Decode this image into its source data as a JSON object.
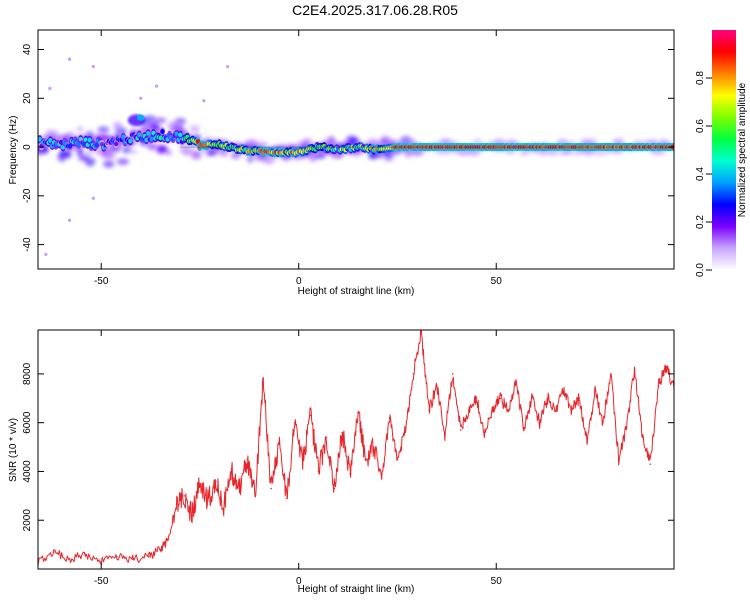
{
  "title": "C2E4.2025.317.06.28.R05",
  "colorbar": {
    "label": "Normalized spectral amplitude",
    "ticks": [
      {
        "value": 0.0,
        "label": "0.0"
      },
      {
        "value": 0.2,
        "label": "0.2"
      },
      {
        "value": 0.4,
        "label": "0.4"
      },
      {
        "value": 0.6,
        "label": "0.6"
      },
      {
        "value": 0.8,
        "label": "0.8"
      }
    ],
    "gradient": [
      "#ffffff",
      "#c9a6ff",
      "#7a00ff",
      "#0000ff",
      "#00a0ff",
      "#00ffd0",
      "#00ff40",
      "#80ff00",
      "#ffff00",
      "#ff8000",
      "#ff0000",
      "#ff0080"
    ]
  },
  "chart_data": [
    {
      "type": "heatmap",
      "name": "spectrogram",
      "xlabel": "Height of straight line (km)",
      "ylabel": "Frequency (Hz)",
      "xlim": [
        -66,
        95
      ],
      "ylim": [
        -50,
        48
      ],
      "xticks": [
        {
          "value": -50,
          "label": "-50"
        },
        {
          "value": 0,
          "label": "0"
        },
        {
          "value": 50,
          "label": "50"
        }
      ],
      "yticks": [
        {
          "value": -40,
          "label": "-40"
        },
        {
          "value": -20,
          "label": "-20"
        },
        {
          "value": 0,
          "label": "0"
        },
        {
          "value": 20,
          "label": "20"
        },
        {
          "value": 40,
          "label": "40"
        }
      ],
      "ridge": {
        "x": [
          -66,
          -60,
          -55,
          -50,
          -45,
          -40,
          -35,
          -30,
          -25,
          -20,
          -15,
          -10,
          -5,
          0,
          5,
          10,
          15,
          20,
          25,
          30,
          40,
          50,
          60,
          70,
          80,
          90,
          95
        ],
        "freq": [
          2,
          1,
          2,
          1,
          3,
          4,
          5,
          4,
          1,
          1,
          -1,
          -2,
          -2,
          -2,
          0,
          -1,
          0,
          -1,
          0,
          0,
          0,
          0,
          0,
          0,
          0,
          0,
          0
        ],
        "amplitude": [
          0.3,
          0.35,
          0.35,
          0.3,
          0.3,
          0.35,
          0.4,
          0.3,
          0.85,
          0.7,
          0.6,
          0.75,
          0.8,
          0.7,
          0.5,
          0.55,
          0.6,
          0.65,
          0.95,
          0.95,
          0.95,
          0.95,
          0.95,
          0.95,
          0.9,
          0.95,
          0.95
        ]
      }
    },
    {
      "type": "line",
      "name": "snr",
      "xlabel": "Height of straight line (km)",
      "ylabel": "SNR (10 * v/v)",
      "xlim": [
        -66,
        95
      ],
      "ylim": [
        0,
        9800
      ],
      "color": "#e8252a",
      "xticks": [
        {
          "value": -50,
          "label": "-50"
        },
        {
          "value": 0,
          "label": "0"
        },
        {
          "value": 50,
          "label": "50"
        }
      ],
      "yticks": [
        {
          "value": 2000,
          "label": "2000"
        },
        {
          "value": 4000,
          "label": "4000"
        },
        {
          "value": 6000,
          "label": "6000"
        },
        {
          "value": 8000,
          "label": "8000"
        }
      ],
      "x": [
        -66,
        -62,
        -58,
        -54,
        -50,
        -46,
        -42,
        -38,
        -35,
        -33,
        -31,
        -29,
        -27,
        -25,
        -23,
        -21,
        -19,
        -17,
        -15,
        -13,
        -11,
        -9,
        -7,
        -5,
        -3,
        -1,
        1,
        3,
        5,
        7,
        9,
        11,
        13,
        15,
        17,
        19,
        21,
        23,
        25,
        27,
        29,
        31,
        33,
        35,
        37,
        39,
        41,
        43,
        45,
        47,
        49,
        51,
        53,
        55,
        57,
        59,
        61,
        63,
        65,
        67,
        69,
        71,
        73,
        75,
        77,
        79,
        81,
        83,
        85,
        87,
        89,
        91,
        93,
        95
      ],
      "y": [
        300,
        700,
        400,
        600,
        300,
        500,
        400,
        500,
        800,
        1200,
        2500,
        3000,
        2200,
        3500,
        2800,
        3600,
        2500,
        4000,
        3300,
        4500,
        3000,
        7800,
        3300,
        5200,
        2900,
        6000,
        4500,
        6300,
        4000,
        5400,
        3300,
        5600,
        3900,
        6400,
        4500,
        5000,
        3700,
        6200,
        4500,
        5700,
        8000,
        9700,
        6500,
        7500,
        5500,
        8000,
        5700,
        6500,
        7000,
        5500,
        6500,
        7000,
        6500,
        7700,
        5800,
        7000,
        6000,
        7000,
        6500,
        7300,
        6500,
        7000,
        5200,
        7300,
        6000,
        8000,
        4500,
        5800,
        8200,
        5500,
        4300,
        7500,
        8300,
        7400
      ]
    }
  ]
}
